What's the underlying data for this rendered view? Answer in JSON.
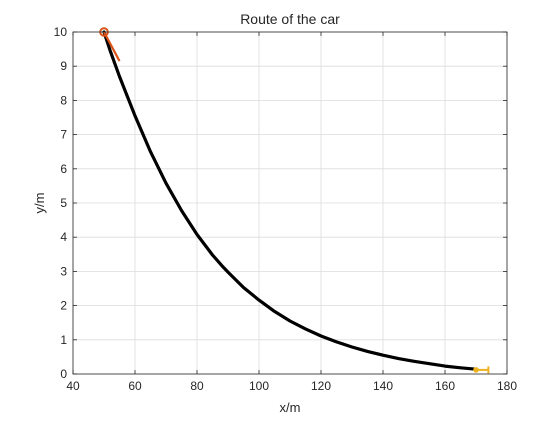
{
  "chart_data": {
    "type": "line",
    "title": "Route of the car",
    "xlabel": "x/m",
    "ylabel": "y/m",
    "xlim": [
      40,
      180
    ],
    "ylim": [
      0,
      10
    ],
    "xticks": [
      40,
      60,
      80,
      100,
      120,
      140,
      160,
      180
    ],
    "yticks": [
      0,
      1,
      2,
      3,
      4,
      5,
      6,
      7,
      8,
      9,
      10
    ],
    "xtick_labels": [
      "40",
      "60",
      "80",
      "100",
      "120",
      "140",
      "160",
      "180"
    ],
    "ytick_labels": [
      "0",
      "1",
      "2",
      "3",
      "4",
      "5",
      "6",
      "7",
      "8",
      "9",
      "10"
    ],
    "grid": true,
    "series": [
      {
        "color": "#000000",
        "x": [
          50,
          52,
          55,
          60,
          65,
          70,
          75,
          80,
          85,
          88,
          90,
          95,
          100,
          105,
          110,
          115,
          120,
          125,
          130,
          135,
          140,
          145,
          150,
          155,
          160,
          165,
          170
        ],
        "y": [
          10.0,
          9.45,
          8.7,
          7.55,
          6.5,
          5.58,
          4.78,
          4.08,
          3.48,
          3.17,
          2.98,
          2.53,
          2.16,
          1.83,
          1.55,
          1.32,
          1.11,
          0.94,
          0.79,
          0.66,
          0.55,
          0.45,
          0.37,
          0.3,
          0.23,
          0.18,
          0.14
        ]
      }
    ],
    "annotations": [
      {
        "kind": "start-marker",
        "color": "#D95319",
        "point": [
          50,
          10
        ],
        "heading_to": [
          55,
          9.15
        ]
      },
      {
        "kind": "end-marker",
        "color": "#EDB120",
        "point": [
          170,
          0.12
        ],
        "heading_to": [
          174,
          0.12
        ]
      }
    ],
    "colors": {
      "path": "#000000",
      "start": "#D95319",
      "end": "#EDB120",
      "grid": "#dcdcdc",
      "axes": "#262626"
    }
  }
}
